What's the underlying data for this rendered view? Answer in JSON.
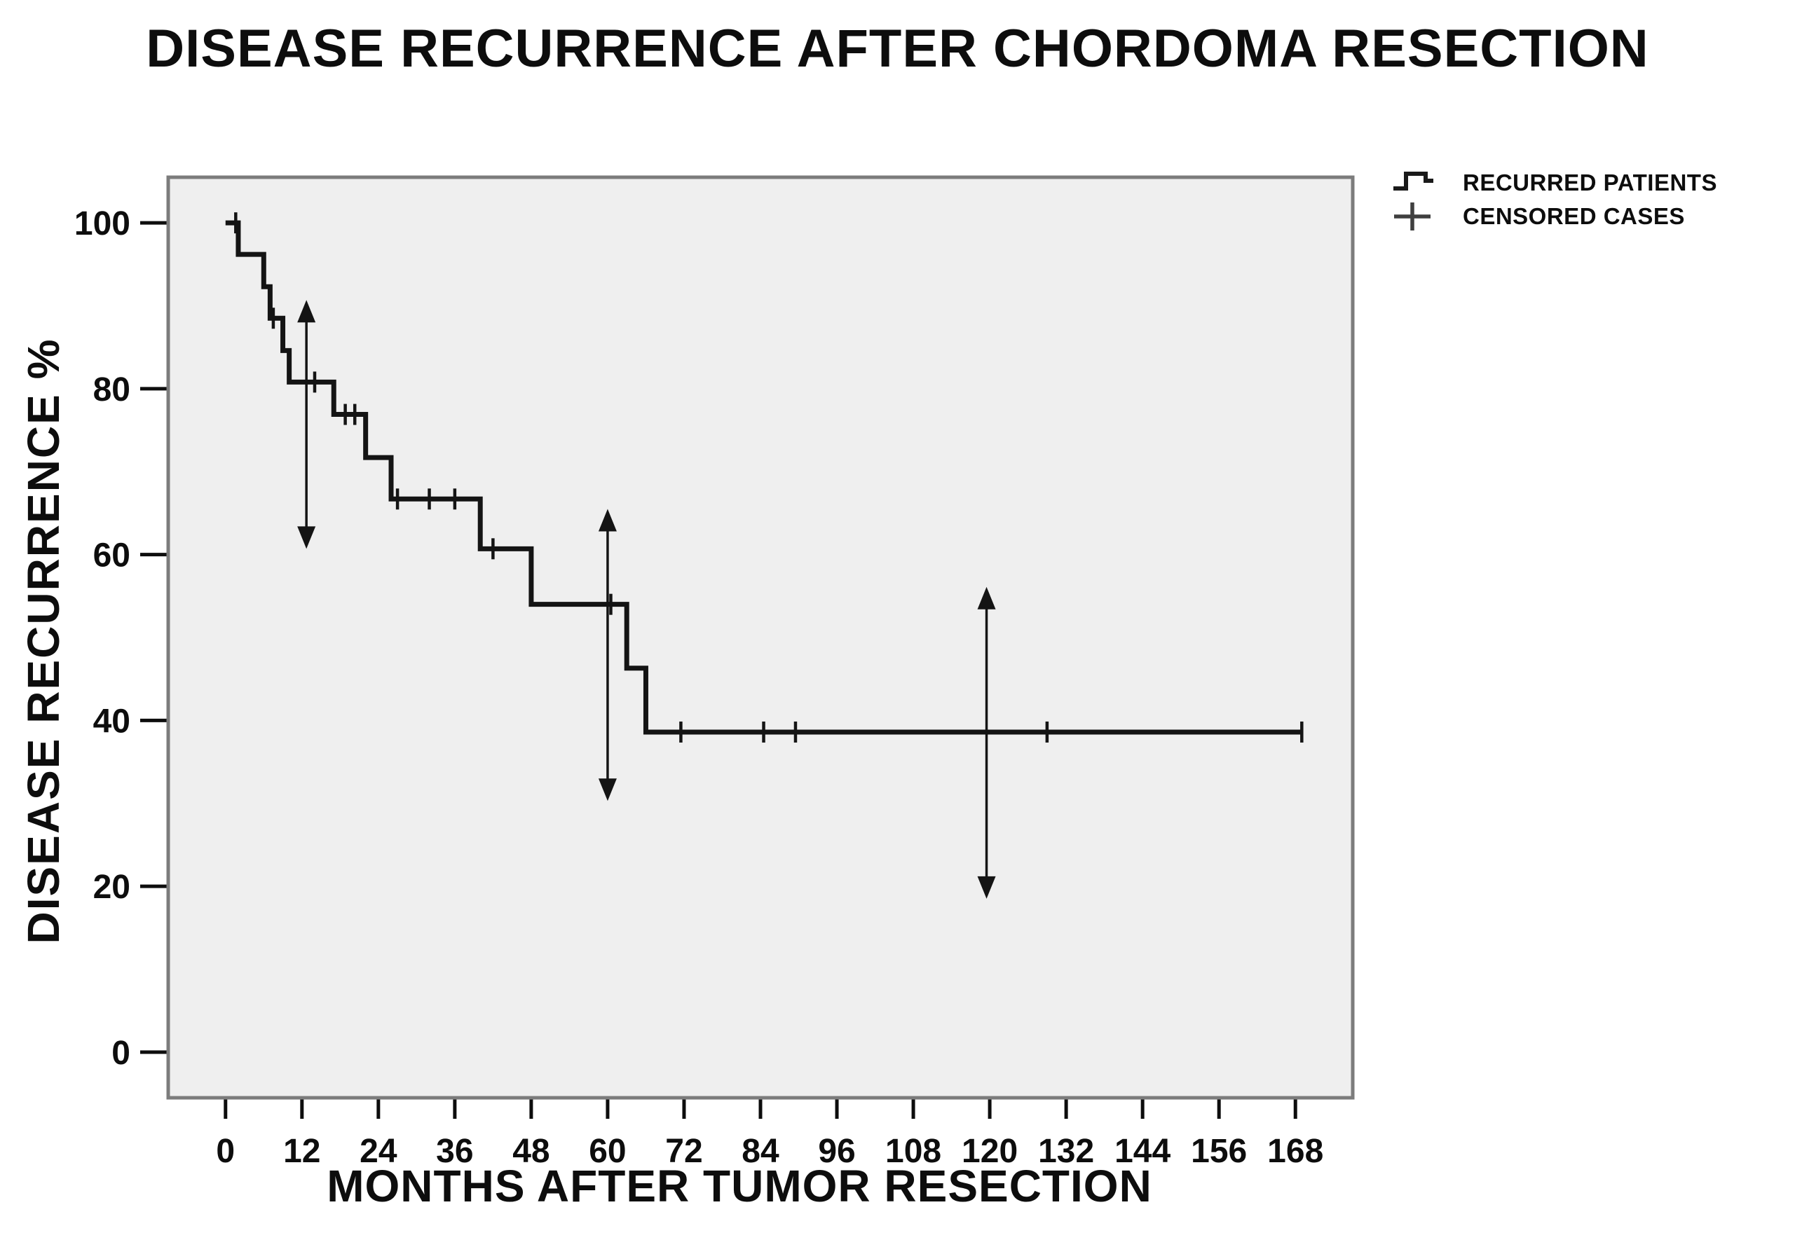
{
  "title": "DISEASE RECURRENCE AFTER CHORDOMA RESECTION",
  "axes": {
    "x_label": "MONTHS AFTER TUMOR RESECTION",
    "y_label": "DISEASE RECURRENCE %",
    "x_ticks": [
      0,
      12,
      24,
      36,
      48,
      60,
      72,
      84,
      96,
      108,
      120,
      132,
      144,
      156,
      168
    ],
    "y_ticks": [
      100,
      80,
      60,
      40,
      20,
      0
    ]
  },
  "legend": {
    "items": [
      {
        "icon": "step-curve-icon",
        "label": "RECURRED PATIENTS"
      },
      {
        "icon": "plus-icon",
        "label": "CENSORED CASES"
      }
    ]
  },
  "colors": {
    "curve": "#141414",
    "plot_bg": "#efefef",
    "frame": "#7c7c7c",
    "text": "#0d0d0d"
  },
  "chart_data": {
    "type": "line",
    "subtype": "kaplan-meier-step",
    "title": "DISEASE RECURRENCE AFTER CHORDOMA RESECTION",
    "xlabel": "MONTHS AFTER TUMOR RESECTION",
    "ylabel": "DISEASE RECURRENCE %",
    "xlim": [
      -9,
      177
    ],
    "ylim": [
      -5.5,
      105.5
    ],
    "x_ticks": [
      0,
      12,
      24,
      36,
      48,
      60,
      72,
      84,
      96,
      108,
      120,
      132,
      144,
      156,
      168
    ],
    "y_ticks": [
      100,
      80,
      60,
      40,
      20,
      0
    ],
    "grid": false,
    "legend_position": "outside-upper-right",
    "series": [
      {
        "name": "RECURRED PATIENTS",
        "step_points": [
          [
            0,
            100
          ],
          [
            2,
            96.2
          ],
          [
            6,
            92.3
          ],
          [
            7,
            88.5
          ],
          [
            9,
            84.6
          ],
          [
            10,
            80.8
          ],
          [
            17,
            76.9
          ],
          [
            22,
            71.7
          ],
          [
            26,
            66.7
          ],
          [
            40,
            60.7
          ],
          [
            48,
            54.0
          ],
          [
            63,
            46.3
          ],
          [
            66,
            38.6
          ]
        ],
        "end_x": 169
      }
    ],
    "censored": [
      [
        1.6,
        100
      ],
      [
        7.5,
        88.5
      ],
      [
        14,
        80.8
      ],
      [
        18.8,
        76.9
      ],
      [
        20.3,
        76.9
      ],
      [
        27,
        66.7
      ],
      [
        32,
        66.7
      ],
      [
        36,
        66.7
      ],
      [
        42,
        60.7
      ],
      [
        60.5,
        54.0
      ],
      [
        71.5,
        38.6
      ],
      [
        84.5,
        38.6
      ],
      [
        89.5,
        38.6
      ],
      [
        129,
        38.6
      ],
      [
        169,
        38.6
      ]
    ],
    "ci_arrows": [
      {
        "x": 12.7,
        "low": 60.7,
        "high": 90.7
      },
      {
        "x": 60,
        "low": 30.3,
        "high": 65.5
      },
      {
        "x": 119.5,
        "low": 18.5,
        "high": 56.1
      }
    ]
  }
}
